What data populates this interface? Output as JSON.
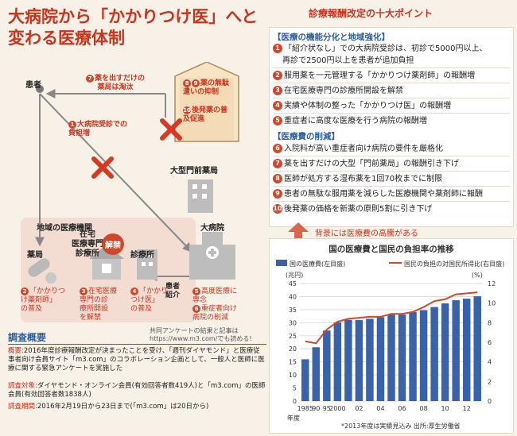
{
  "title": {
    "line1": "大病院から「かかりつけ医」へと",
    "line2": "変わる医療体制"
  },
  "reform": {
    "heading": "診療報酬改定の十大ポイント",
    "sec1": "【医療の機能分化と地域強化】",
    "sec2": "【医療費の削減】",
    "points": [
      {
        "n": "1",
        "text": "「紹介状なし」での大病院受診は、初診で5000円以上、",
        "cont": "再診で2500円以上を患者が追加負担"
      },
      {
        "n": "2",
        "text": "服用薬を一元管理する「かかりつけ薬剤師」の報酬増"
      },
      {
        "n": "3",
        "text": "在宅医療専門の診療所開設を解禁"
      },
      {
        "n": "4",
        "text": "実績や体制の整った「かかりつけ医」の報酬増"
      },
      {
        "n": "5",
        "text": "重症者に高度な医療を行う病院の報酬増"
      },
      {
        "n": "6",
        "text": "入院料が高い重症者向け病院の要件を厳格化"
      },
      {
        "n": "7",
        "text": "薬を出すだけの大型「門前薬局」の報酬引き下げ"
      },
      {
        "n": "8",
        "text": "医師が処方する湿布薬を1回70枚までに制限"
      },
      {
        "n": "9",
        "text": "患者の無駄な服用薬を減らした医療機関や薬剤師に報酬"
      },
      {
        "n": "10",
        "text": "後発薬の価格を新薬の原則5割に引き下げ"
      }
    ]
  },
  "arrow_note": "背景には医療費の高騰がある",
  "diagram": {
    "patient": "患者",
    "n7": "7",
    "pharmacy_eliminated": "薬を出すだけの\n薬局は淘汰",
    "n8": "8",
    "n9": "9",
    "n10": "10",
    "box_text1": "薬の無駄\n遣いの抑制",
    "box_text2": "後発薬の普\n及促進",
    "n1": "1",
    "big_hospital_burden": "大病院受診での\n負担増",
    "monzen": "大型門前薬局",
    "local_org": "地域の医療機関",
    "pharmacy": "薬局",
    "home_clinic": "在宅\n医療専門\n診療所",
    "kaikin": "解禁",
    "clinic": "診療所",
    "big_hospital": "大病院",
    "referral": "患者\n紹介",
    "n2": "2",
    "l2": "「かかりつ\nけ薬剤師」\nの普及",
    "n3": "3",
    "l3": "在宅医療\n専門の診\n療所開設\nを解禁",
    "n4": "4",
    "l4": "「かかり\nつけ医」\nの普及",
    "n5": "5",
    "l5": "高度医療に\n専念",
    "n6": "6",
    "l6": "重症者向け\n病院の削減",
    "source_note": "共同アンケートの結果と記事は\nhttps://www.m3.com/でも読める!"
  },
  "survey": {
    "title": "調査概要",
    "outline_k": "概要:",
    "outline": "2016年度診療報酬改定が決まったことを受け、「週刊ダイヤモンド」と医療従事者向け会員サイト「m3.com」のコラボレーション企画として、一般人と医師に医療に関する緊急アンケートを実施した",
    "target_k": "調査対象:",
    "target": "ダイヤモンド・オンライン会員(有効回答者数419人)と「m3.com」の医師会員(有効回答者数1838人)",
    "period_k": "調査期間:",
    "period": "2016年2月19日から23日まで(「m3.com」は20日から)"
  },
  "colors": {
    "red": "#c8341e",
    "blue": "#3a62a8",
    "line": "#cc4a2e"
  },
  "chart_data": {
    "type": "bar+line",
    "title": "国の医療費と国民の負担率の推移",
    "legend": [
      "国の医療費(左目盛)",
      "国民の負担の対国民所得比(右目盛)"
    ],
    "left_unit": "(兆円)",
    "right_unit": "(%)",
    "xlabel": "年度",
    "x_labels": [
      "1985",
      "90",
      "95",
      "2000",
      "02",
      "04",
      "06",
      "08",
      "10",
      "12"
    ],
    "x": [
      1985,
      1990,
      1995,
      2000,
      2001,
      2002,
      2003,
      2004,
      2005,
      2006,
      2007,
      2008,
      2009,
      2010,
      2011,
      2012,
      2013
    ],
    "values": [
      16.0,
      20.6,
      27.0,
      30.1,
      31.1,
      31.0,
      31.5,
      32.1,
      33.1,
      33.1,
      34.1,
      34.8,
      36.0,
      37.4,
      38.6,
      39.2,
      40.1
    ],
    "ratio": [
      6.1,
      5.9,
      7.3,
      8.1,
      8.4,
      8.5,
      8.6,
      8.6,
      8.9,
      8.9,
      9.1,
      9.6,
      10.2,
      10.4,
      10.9,
      11.0,
      11.1
    ],
    "ylim_left": [
      0,
      45
    ],
    "ylim_right": [
      0,
      12
    ],
    "yticks_left": [
      0,
      5,
      10,
      15,
      20,
      25,
      30,
      35,
      40,
      45
    ],
    "yticks_right": [
      0,
      2,
      4,
      6,
      8,
      10,
      12
    ],
    "footnote": "*2013年度は実績見込み 出所:厚生労働省"
  }
}
